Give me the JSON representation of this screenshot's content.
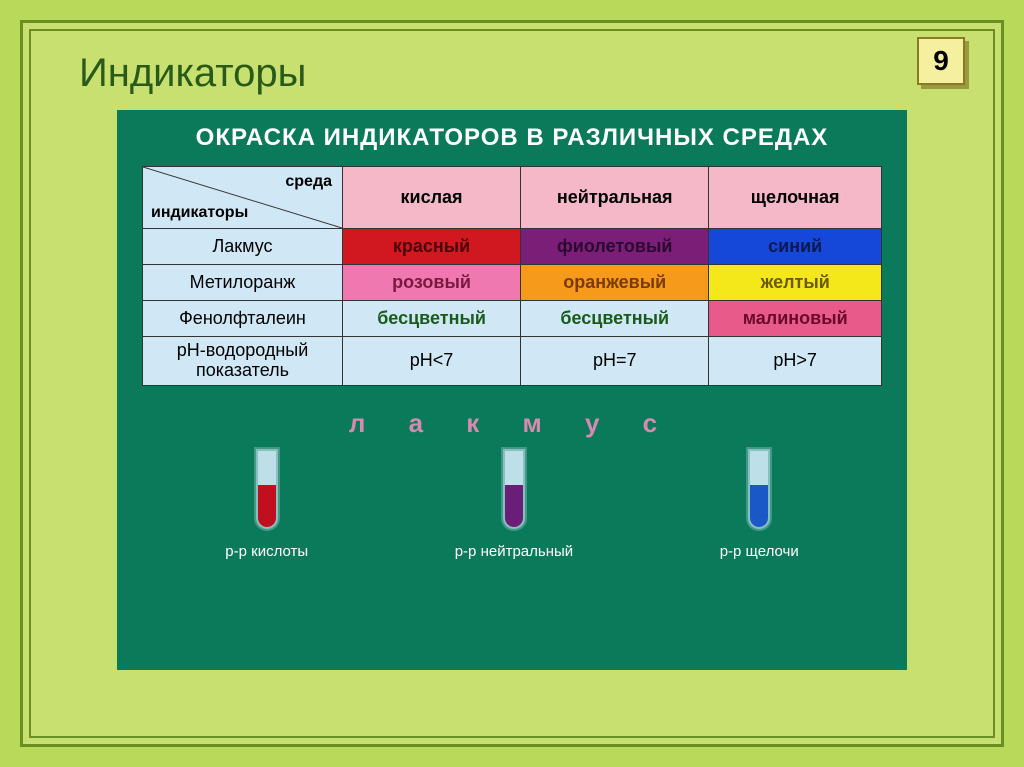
{
  "page_number": "9",
  "title": "Индикаторы",
  "slide_heading": "ОКРАСКА ИНДИКАТОРОВ В РАЗЛИЧНЫХ СРЕДАХ",
  "header": {
    "top": "среда",
    "bottom": "индикаторы",
    "columns": [
      "кислая",
      "нейтральная",
      "щелочная"
    ]
  },
  "rows": [
    {
      "label": "Лакмус",
      "cells": [
        {
          "text": "красный",
          "bg": "#d11820",
          "fg": "#4a0608"
        },
        {
          "text": "фиолетовый",
          "bg": "#7a1e78",
          "fg": "#2a0830"
        },
        {
          "text": "синий",
          "bg": "#1548d8",
          "fg": "#0a1a50"
        }
      ]
    },
    {
      "label": "Метилоранж",
      "cells": [
        {
          "text": "розовый",
          "bg": "#f078b0",
          "fg": "#7a1840"
        },
        {
          "text": "оранжевый",
          "bg": "#f59a1a",
          "fg": "#7a3a00"
        },
        {
          "text": "желтый",
          "bg": "#f5e81a",
          "fg": "#6a5a00"
        }
      ]
    },
    {
      "label": "Фенолфталеин",
      "cells": [
        {
          "text": "бесцветный",
          "bg": "#d0e8f5",
          "fg": "#1a5a1a"
        },
        {
          "text": "бесцветный",
          "bg": "#d0e8f5",
          "fg": "#1a5a1a"
        },
        {
          "text": "малиновый",
          "bg": "#e85a8a",
          "fg": "#6a0a2a"
        }
      ]
    }
  ],
  "ph_row": {
    "label": "рН-водородный показатель",
    "cells": [
      "pH<7",
      "pH=7",
      "pH>7"
    ]
  },
  "litmus_spaced": "л а к м у с",
  "tubes": [
    {
      "caption": "р-р кислоты",
      "fill": "#c01020"
    },
    {
      "caption": "р-р нейтральный",
      "fill": "#6a1e78"
    },
    {
      "caption": "р-р щелочи",
      "fill": "#1a58c8"
    }
  ],
  "style": {
    "page_bg": "#b8d95a",
    "frame_border": "#6b8e23",
    "slide_bg": "#0a7a5a",
    "table_bg": "#d0e8f5",
    "colhead_bg": "#f5b8c8",
    "litmus_color": "#d68ab0",
    "title_color": "#2a5a1a"
  }
}
